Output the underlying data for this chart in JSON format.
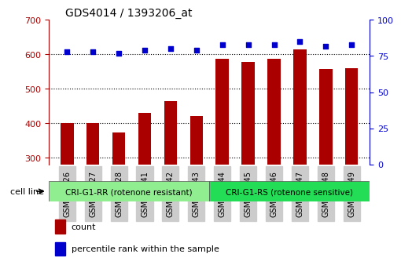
{
  "title": "GDS4014 / 1393206_at",
  "categories": [
    "GSM498426",
    "GSM498427",
    "GSM498428",
    "GSM498441",
    "GSM498442",
    "GSM498443",
    "GSM498444",
    "GSM498445",
    "GSM498446",
    "GSM498447",
    "GSM498448",
    "GSM498449"
  ],
  "counts": [
    400,
    400,
    372,
    430,
    463,
    420,
    588,
    578,
    588,
    615,
    558,
    560
  ],
  "percentile_ranks": [
    78,
    78,
    77,
    79,
    80,
    79,
    83,
    83,
    83,
    85,
    82,
    83
  ],
  "group1_label": "CRI-G1-RR (rotenone resistant)",
  "group2_label": "CRI-G1-RS (rotenone sensitive)",
  "group1_count": 6,
  "group2_count": 6,
  "bar_color": "#AA0000",
  "dot_color": "#0000CC",
  "group1_bg": "#90EE90",
  "group2_bg": "#00CC44",
  "ylim_left": [
    280,
    700
  ],
  "ylim_right": [
    0,
    100
  ],
  "yticks_left": [
    300,
    400,
    500,
    600,
    700
  ],
  "yticks_right": [
    0,
    25,
    50,
    75,
    100
  ],
  "legend_count_label": "count",
  "legend_pct_label": "percentile rank within the sample",
  "cell_line_label": "cell line",
  "background_color": "#FFFFFF",
  "plot_bg": "#FFFFFF",
  "tick_area_bg": "#E0E0E0"
}
